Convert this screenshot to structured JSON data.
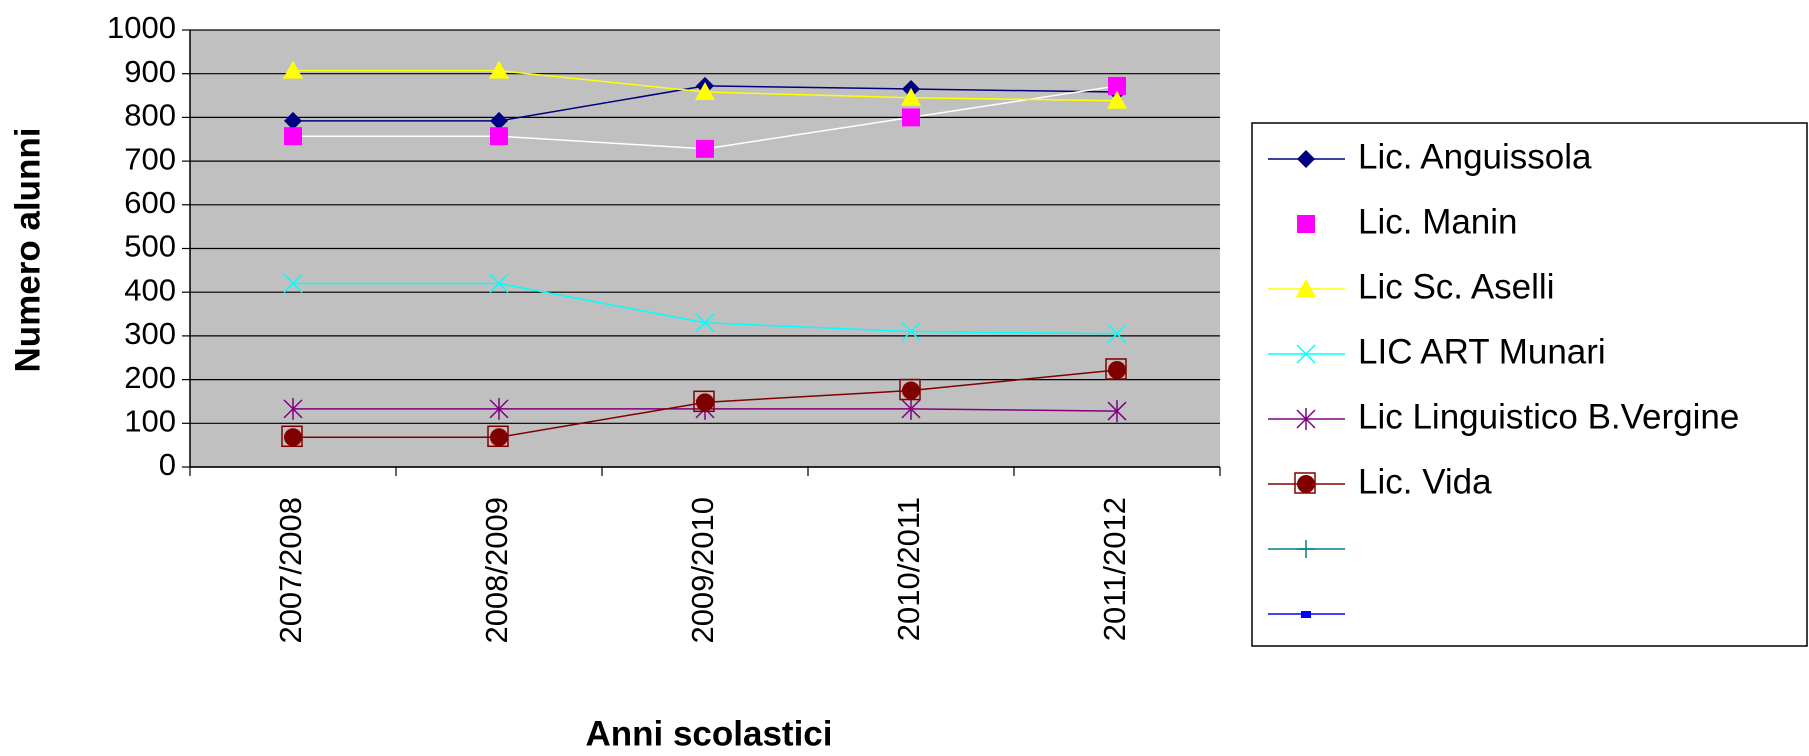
{
  "chart_data": {
    "type": "line",
    "y_label": "Numero alunni",
    "x_label": "Anni scolastici",
    "categories": [
      "2007/2008",
      "2008/2009",
      "2009/2010",
      "2010/2011",
      "2011/2012"
    ],
    "ylim": [
      0,
      1000
    ],
    "yticks": [
      0,
      100,
      200,
      300,
      400,
      500,
      600,
      700,
      800,
      900,
      1000
    ],
    "grid": true,
    "legend": "right",
    "series": [
      {
        "name": "Lic. Anguissola",
        "color": "#000080",
        "marker_color": "#000080",
        "marker": "diamond",
        "values": [
          792,
          792,
          872,
          865,
          858
        ]
      },
      {
        "name": "Lic. Manin",
        "color": "#ffffff",
        "marker_color": "#ff00ff",
        "marker": "square",
        "values": [
          757,
          757,
          728,
          800,
          872
        ]
      },
      {
        "name": "Lic Sc. Aselli",
        "color": "#ffff00",
        "marker_color": "#ffff00",
        "marker": "triangle",
        "values": [
          907,
          907,
          858,
          845,
          838
        ]
      },
      {
        "name": "LIC ART Munari",
        "color": "#00ffff",
        "marker_color": "#00ffff",
        "marker": "x",
        "values": [
          420,
          420,
          330,
          310,
          305
        ]
      },
      {
        "name": "Lic Linguistico B.Vergine",
        "color": "#800080",
        "marker_color": "#800080",
        "marker": "star",
        "values": [
          133,
          133,
          133,
          133,
          128
        ]
      },
      {
        "name": "Lic. Vida",
        "color": "#800000",
        "marker_color": "#800000",
        "marker": "circle",
        "values": [
          68,
          68,
          148,
          175,
          222
        ]
      },
      {
        "name": null,
        "color": "#008080",
        "marker_color": "#008080",
        "marker": "plus",
        "values": [
          null,
          null,
          null,
          null,
          null
        ]
      },
      {
        "name": null,
        "color": "#0000ff",
        "marker_color": "#0000ff",
        "marker": "small-square",
        "values": [
          null,
          null,
          null,
          null,
          null
        ]
      }
    ]
  }
}
